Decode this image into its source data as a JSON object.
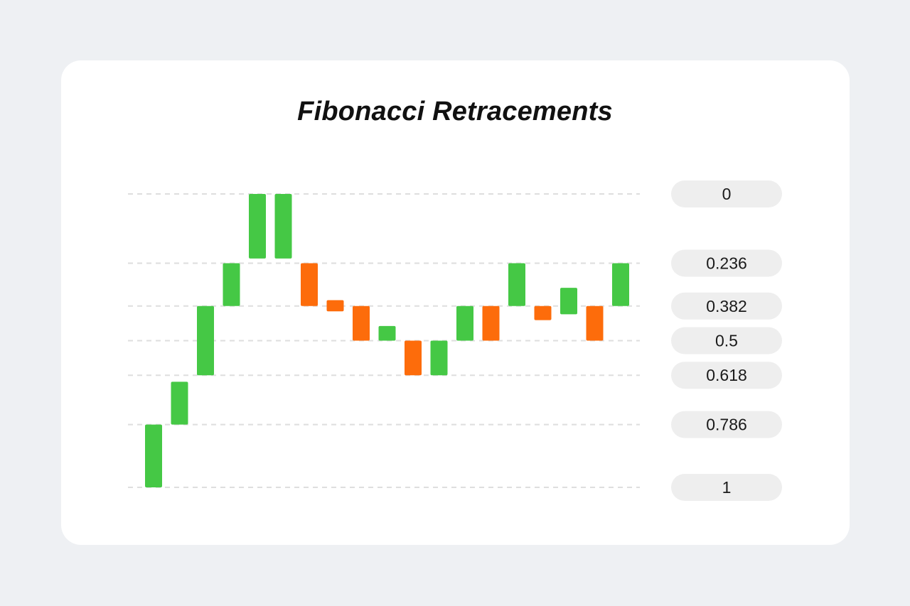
{
  "chart_data": {
    "type": "candlestick",
    "title": "Fibonacci Retracements",
    "y_axis": "fibonacci-ratio",
    "ylim": [
      0,
      1
    ],
    "levels": [
      "0",
      "0.236",
      "0.382",
      "0.5",
      "0.618",
      "0.786",
      "1"
    ],
    "level_values": [
      0,
      0.236,
      0.382,
      0.5,
      0.618,
      0.786,
      1
    ],
    "grid": true,
    "label_position": "right",
    "candles": [
      {
        "from": 1.0,
        "to": 0.786,
        "direction": "up"
      },
      {
        "from": 0.786,
        "to": 0.64,
        "direction": "up"
      },
      {
        "from": 0.618,
        "to": 0.382,
        "direction": "up"
      },
      {
        "from": 0.382,
        "to": 0.236,
        "direction": "up"
      },
      {
        "from": 0.22,
        "to": 0.0,
        "direction": "up"
      },
      {
        "from": 0.22,
        "to": 0.0,
        "direction": "up"
      },
      {
        "from": 0.236,
        "to": 0.382,
        "direction": "down"
      },
      {
        "from": 0.362,
        "to": 0.4,
        "direction": "down"
      },
      {
        "from": 0.382,
        "to": 0.5,
        "direction": "down"
      },
      {
        "from": 0.45,
        "to": 0.5,
        "direction": "up"
      },
      {
        "from": 0.5,
        "to": 0.618,
        "direction": "down"
      },
      {
        "from": 0.5,
        "to": 0.618,
        "direction": "up"
      },
      {
        "from": 0.382,
        "to": 0.5,
        "direction": "up"
      },
      {
        "from": 0.382,
        "to": 0.5,
        "direction": "down"
      },
      {
        "from": 0.236,
        "to": 0.382,
        "direction": "up"
      },
      {
        "from": 0.382,
        "to": 0.43,
        "direction": "down"
      },
      {
        "from": 0.32,
        "to": 0.41,
        "direction": "up"
      },
      {
        "from": 0.382,
        "to": 0.5,
        "direction": "down"
      },
      {
        "from": 0.236,
        "to": 0.382,
        "direction": "up"
      }
    ],
    "colors": {
      "up": "#45c845",
      "down": "#fd6c0b",
      "grid": "#dedede",
      "label_bg": "#eeeeee"
    }
  }
}
